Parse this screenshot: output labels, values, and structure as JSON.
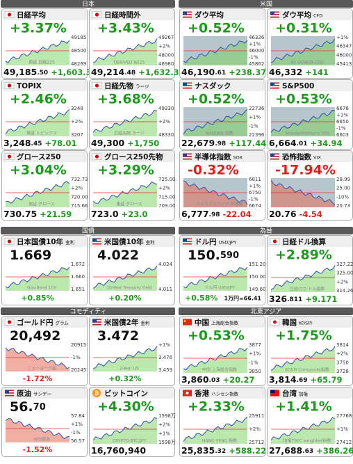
{
  "sections": [
    {
      "title": "日本",
      "tiles": [
        {
          "title": "日経平均",
          "headline": "+3.37%",
          "ticks": [
            "49185",
            "48500",
            "48269"
          ],
          "watermark": "東証 日経225",
          "price": "49,185",
          "price_dec": ".50",
          "change": "+1,603.35"
        },
        {
          "title": "日経時間外",
          "headline": "+3.43%",
          "ticks": [
            "49267",
            "+2%",
            "48000",
            "46980"
          ],
          "watermark": "DERIVED N225",
          "price": "49,214",
          "price_dec": ".48",
          "change": "+1,632.33"
        },
        {
          "title": "TOPIX",
          "headline": "+2.46%",
          "ticks": [
            "3248",
            "+2%",
            "3207"
          ],
          "watermark": "東証 トピックス",
          "price": "3,248",
          "price_dec": ".45",
          "change": "+78.01"
        },
        {
          "title": "日経先物",
          "sub": "ラージ",
          "headline": "+3.68%",
          "ticks": [
            "49330",
            "+2%",
            "48330"
          ],
          "watermark": "日経先物 ラージ",
          "price": "49,300",
          "change": "+1,750"
        },
        {
          "title": "グロース250",
          "headline": "+3.04%",
          "ticks": [
            "732.73",
            "+2%",
            "720.00",
            "715.66"
          ],
          "watermark": "東証 グロース",
          "price": "730.75",
          "change": "+21.59"
        },
        {
          "title": "グロース250先物",
          "headline": "+3.29%",
          "ticks": [
            "725.00",
            "+2%",
            "715.00",
            "709.00"
          ],
          "watermark": "東証 グロース",
          "price": "723.0",
          "change": "+23.0"
        }
      ]
    },
    {
      "title": "米国",
      "tiles": [
        {
          "title": "ダウ平均",
          "headline": "+0.52%",
          "ticks": [
            "46326",
            "+1%",
            "46000",
            "-1%",
            "45862"
          ],
          "price": "46,190",
          "price_dec": ".61",
          "change": "+238.37"
        },
        {
          "title": "ダウ平均",
          "sub": "CFD",
          "headline": "+0.31%",
          "ticks": [
            "+1%",
            "46347",
            "46000",
            "45413"
          ],
          "watermark": "NY DOW30 CFD",
          "price": "46,332",
          "change": "+141"
        },
        {
          "title": "ナスダック",
          "headline": "+0.52%",
          "ticks": [
            "22736",
            "+1%",
            "-1%",
            "22396"
          ],
          "watermark": "NASDAQ 指数",
          "price": "22,679",
          "price_dec": ".98",
          "change": "+117.44"
        },
        {
          "title": "S&P500",
          "headline": "+0.53%",
          "ticks": [
            "6678",
            "+1%",
            "6650",
            "-1%",
            "6603"
          ],
          "watermark": "Standard&Poor's 500",
          "price": "6,664",
          "price_dec": ".01",
          "change": "+34.94"
        },
        {
          "title": "半導体指数",
          "sub": "SOX",
          "headline": "-0.32%",
          "ticks": [
            "6811",
            "+1%",
            "6750",
            "-1%",
            "6674"
          ],
          "watermark": "フィラデルフィア 半導体",
          "price": "6,777",
          "price_dec": ".98",
          "change": "-22.04"
        },
        {
          "title": "恐怖指数",
          "sub": "VIX",
          "headline": "-17.94%",
          "ticks": [
            "28.99",
            "25.00",
            "-10%",
            "20.73"
          ],
          "price": "20.76",
          "change": "-4.54"
        }
      ]
    },
    {
      "title": "国債",
      "tiles": [
        {
          "title": "日本国債10年",
          "sub": "金利",
          "headline": "1.669",
          "ticks": [
            "1.672",
            "1.660",
            "1.651"
          ],
          "watermark": "Gov.Bond 10Y",
          "change": "+0.85%"
        },
        {
          "title": "米国債10年",
          "sub": "金利",
          "headline": "4.022",
          "ticks": [
            "4.024",
            "4.011"
          ],
          "watermark": "10-Year Treasury Yield",
          "change": "+0.20%"
        }
      ]
    },
    {
      "title": "為替",
      "tiles": [
        {
          "title": "ドル円",
          "sub": "USD/JPY",
          "headline": "150.",
          "headline_dec": "590",
          "ticks": [
            "151.20",
            "150.00",
            "149.60"
          ],
          "watermark": "ドル円 USD/JPY",
          "change": "+0.58%",
          "extra": "1万円=66.41"
        },
        {
          "title": "日経ドル換算",
          "headline": "+2.89%",
          "ticks": [
            "327.22",
            "325.00",
            "+2%",
            "314.26"
          ],
          "watermark": "日経CFD ドル換算",
          "price": "326",
          "price_dec": ".811",
          "change": "+9.171"
        }
      ]
    },
    {
      "title": "コモディティ",
      "tiles": [
        {
          "title": "ゴールド円",
          "sub": "グラム",
          "headline": "20,492",
          "ticks": [
            "20915",
            "-1%",
            "20245"
          ],
          "watermark": "ニューヨーク金",
          "change": "-1.72%"
        },
        {
          "title": "米国債2年",
          "sub": "金利",
          "headline": "3.472",
          "ticks": [
            "+1%",
            "3.476",
            "3.459"
          ],
          "watermark": "2-Year US",
          "change": "+0.32%"
        },
        {
          "title": "原油",
          "sub": "サンデー",
          "headline": "56.",
          "headline_dec": "70",
          "ticks": [
            "57.84",
            "+1%",
            "-1%",
            "56.57"
          ],
          "watermark": "WTI原油",
          "change": "-1.52%"
        },
        {
          "title": "ビットコイン",
          "headline": "+4.30%",
          "ticks": [
            "1598万",
            "+2%",
            "+1%",
            "1598万"
          ],
          "watermark": "CRYPTO BTC/JPY",
          "price": "16,760,940"
        }
      ]
    },
    {
      "title": "北東アジア",
      "tiles": [
        {
          "title": "中国",
          "sub": "上海総合指数",
          "headline": "+0.53%",
          "ticks": [
            "3877",
            "+1%",
            "-1%",
            "3850"
          ],
          "watermark": "中国 上海総合指数",
          "price": "3,860",
          "price_dec": ".03",
          "change": "+20.27"
        },
        {
          "title": "韓国",
          "sub": "KOSPI",
          "headline": "+1.75%",
          "ticks": [
            "3814",
            "+2%",
            "3750",
            "3728"
          ],
          "watermark": "KOSPI Composite指数",
          "price": "3,814",
          "price_dec": ".69",
          "change": "+65.79"
        },
        {
          "title": "香港",
          "sub": "ハンセン指数",
          "headline": "+2.33%",
          "ticks": [
            "25911",
            "+2%",
            "25712"
          ],
          "watermark": "HANG SENG 指数",
          "price": "25,835",
          "price_dec": ".32",
          "change": "+588.22"
        },
        {
          "title": "台湾",
          "sub": "加権",
          "headline": "+1.41%",
          "ticks": [
            "27768",
            "+1%",
            "27412"
          ],
          "watermark": "加権TSEC weighted指数",
          "price": "27,688",
          "price_dec": ".63",
          "change": "+386.26"
        }
      ]
    }
  ]
}
